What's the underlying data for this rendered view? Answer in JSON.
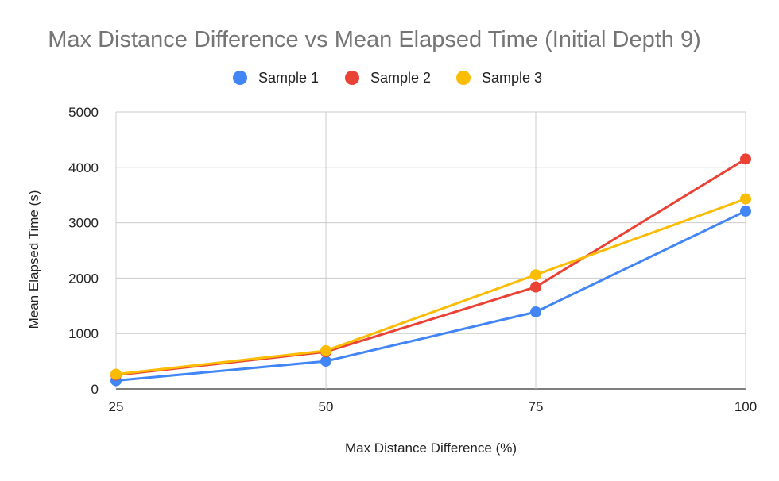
{
  "chart_data": {
    "type": "line",
    "title": "Max Distance Difference vs Mean Elapsed Time (Initial Depth 9)",
    "xlabel": "Max Distance Difference (%)",
    "ylabel": "Mean Elapsed Time (s)",
    "x": [
      25,
      50,
      75,
      100
    ],
    "x_ticks": [
      "25",
      "50",
      "75",
      "100"
    ],
    "ylim": [
      0,
      5000
    ],
    "y_ticks": [
      "0",
      "1000",
      "2000",
      "3000",
      "4000",
      "5000"
    ],
    "grid": true,
    "legend_position": "top",
    "series": [
      {
        "name": "Sample 1",
        "color": "#4285f4",
        "values": [
          150,
          500,
          1390,
          3210
        ]
      },
      {
        "name": "Sample 2",
        "color": "#ea4335",
        "values": [
          250,
          670,
          1840,
          4150
        ]
      },
      {
        "name": "Sample 3",
        "color": "#fbbc04",
        "values": [
          265,
          690,
          2060,
          3430
        ]
      }
    ]
  }
}
